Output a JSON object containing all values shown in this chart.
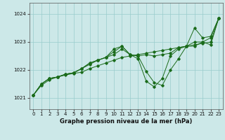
{
  "xlabel": "Graphe pression niveau de la mer (hPa)",
  "xlim": [
    -0.5,
    23.5
  ],
  "ylim": [
    1020.6,
    1024.4
  ],
  "yticks": [
    1021,
    1022,
    1023,
    1024
  ],
  "xticks": [
    0,
    1,
    2,
    3,
    4,
    5,
    6,
    7,
    8,
    9,
    10,
    11,
    12,
    13,
    14,
    15,
    16,
    17,
    18,
    19,
    20,
    21,
    22,
    23
  ],
  "background_color": "#cce8e8",
  "grid_color": "#99cccc",
  "line_color": "#1a6b1a",
  "line1": [
    1021.1,
    1021.45,
    1021.65,
    1021.75,
    1021.82,
    1021.88,
    1021.92,
    1022.05,
    1022.15,
    1022.25,
    1022.35,
    1022.45,
    1022.5,
    1022.55,
    1022.6,
    1022.65,
    1022.7,
    1022.75,
    1022.8,
    1022.85,
    1022.9,
    1022.95,
    1023.0,
    1023.85
  ],
  "line2": [
    1021.1,
    1021.5,
    1021.7,
    1021.75,
    1021.85,
    1021.9,
    1022.05,
    1022.2,
    1022.35,
    1022.45,
    1022.55,
    1022.75,
    1022.55,
    1022.5,
    1022.55,
    1022.5,
    1022.55,
    1022.6,
    1022.8,
    1022.85,
    1022.85,
    1023.0,
    1022.9,
    1023.85
  ],
  "line3": [
    1021.1,
    1021.5,
    1021.7,
    1021.75,
    1021.85,
    1021.9,
    1022.05,
    1022.25,
    1022.35,
    1022.45,
    1022.75,
    1022.85,
    1022.55,
    1022.5,
    1021.95,
    1021.55,
    1021.45,
    1022.0,
    1022.4,
    1022.85,
    1023.0,
    1023.0,
    1023.15,
    1023.85
  ],
  "line4": [
    1021.1,
    1021.5,
    1021.7,
    1021.75,
    1021.85,
    1021.9,
    1022.05,
    1022.25,
    1022.35,
    1022.45,
    1022.65,
    1022.85,
    1022.55,
    1022.4,
    1021.6,
    1021.4,
    1021.7,
    1022.5,
    1022.75,
    1022.85,
    1023.5,
    1023.15,
    1023.2,
    1023.85
  ]
}
